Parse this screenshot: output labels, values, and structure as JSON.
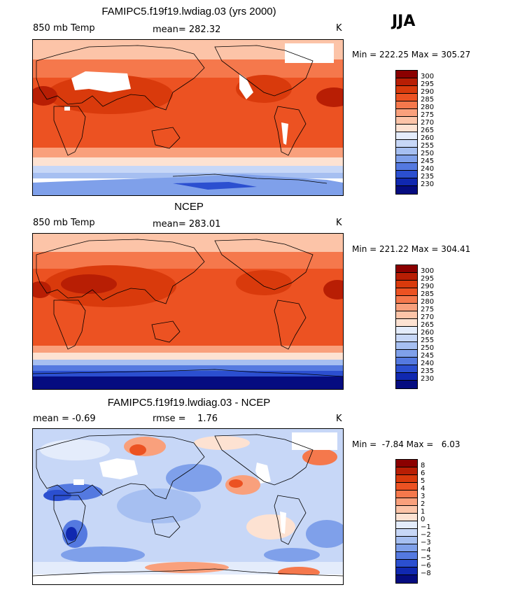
{
  "season": "JJA",
  "panels": [
    {
      "title": "FAMIPC5.f19f19.lwdiag.03 (yrs 2000)",
      "left_label": "850 mb Temp",
      "center_label": "mean= 282.32",
      "units": "K",
      "min_max": "Min = 222.25 Max = 305.27"
    },
    {
      "title": "NCEP",
      "left_label": "850 mb Temp",
      "center_label": "mean= 283.01",
      "units": "K",
      "min_max": "Min = 221.22 Max = 304.41"
    },
    {
      "title": "FAMIPC5.f19f19.lwdiag.03 - NCEP",
      "left_label": "mean =   -0.69",
      "center_label": "rmse =    1.76",
      "units": "K",
      "min_max": "Min =  -7.84 Max =   6.03"
    }
  ],
  "colorbar_abs": {
    "labels": [
      "300",
      "295",
      "290",
      "285",
      "280",
      "275",
      "270",
      "265",
      "260",
      "255",
      "250",
      "245",
      "240",
      "235",
      "230"
    ],
    "colors": [
      "#8b0000",
      "#b81e04",
      "#d93a0c",
      "#ec5222",
      "#f5784c",
      "#f9a07c",
      "#fcc4a8",
      "#fde2d2",
      "#e4ecfb",
      "#c7d7f7",
      "#a6bff1",
      "#7fa0ea",
      "#5479e0",
      "#2b4fd0",
      "#1028b0",
      "#050c80"
    ]
  },
  "colorbar_diff": {
    "labels": [
      "8",
      "6",
      "5",
      "4",
      "3",
      "2",
      "1",
      "0",
      "−1",
      "−2",
      "−3",
      "−4",
      "−5",
      "−6",
      "−8"
    ],
    "colors": [
      "#8b0000",
      "#b81e04",
      "#d93a0c",
      "#ec5222",
      "#f5784c",
      "#f9a07c",
      "#fcc4a8",
      "#fde2d2",
      "#e4ecfb",
      "#c7d7f7",
      "#a6bff1",
      "#7fa0ea",
      "#5479e0",
      "#2b4fd0",
      "#1028b0",
      "#050c80"
    ]
  }
}
